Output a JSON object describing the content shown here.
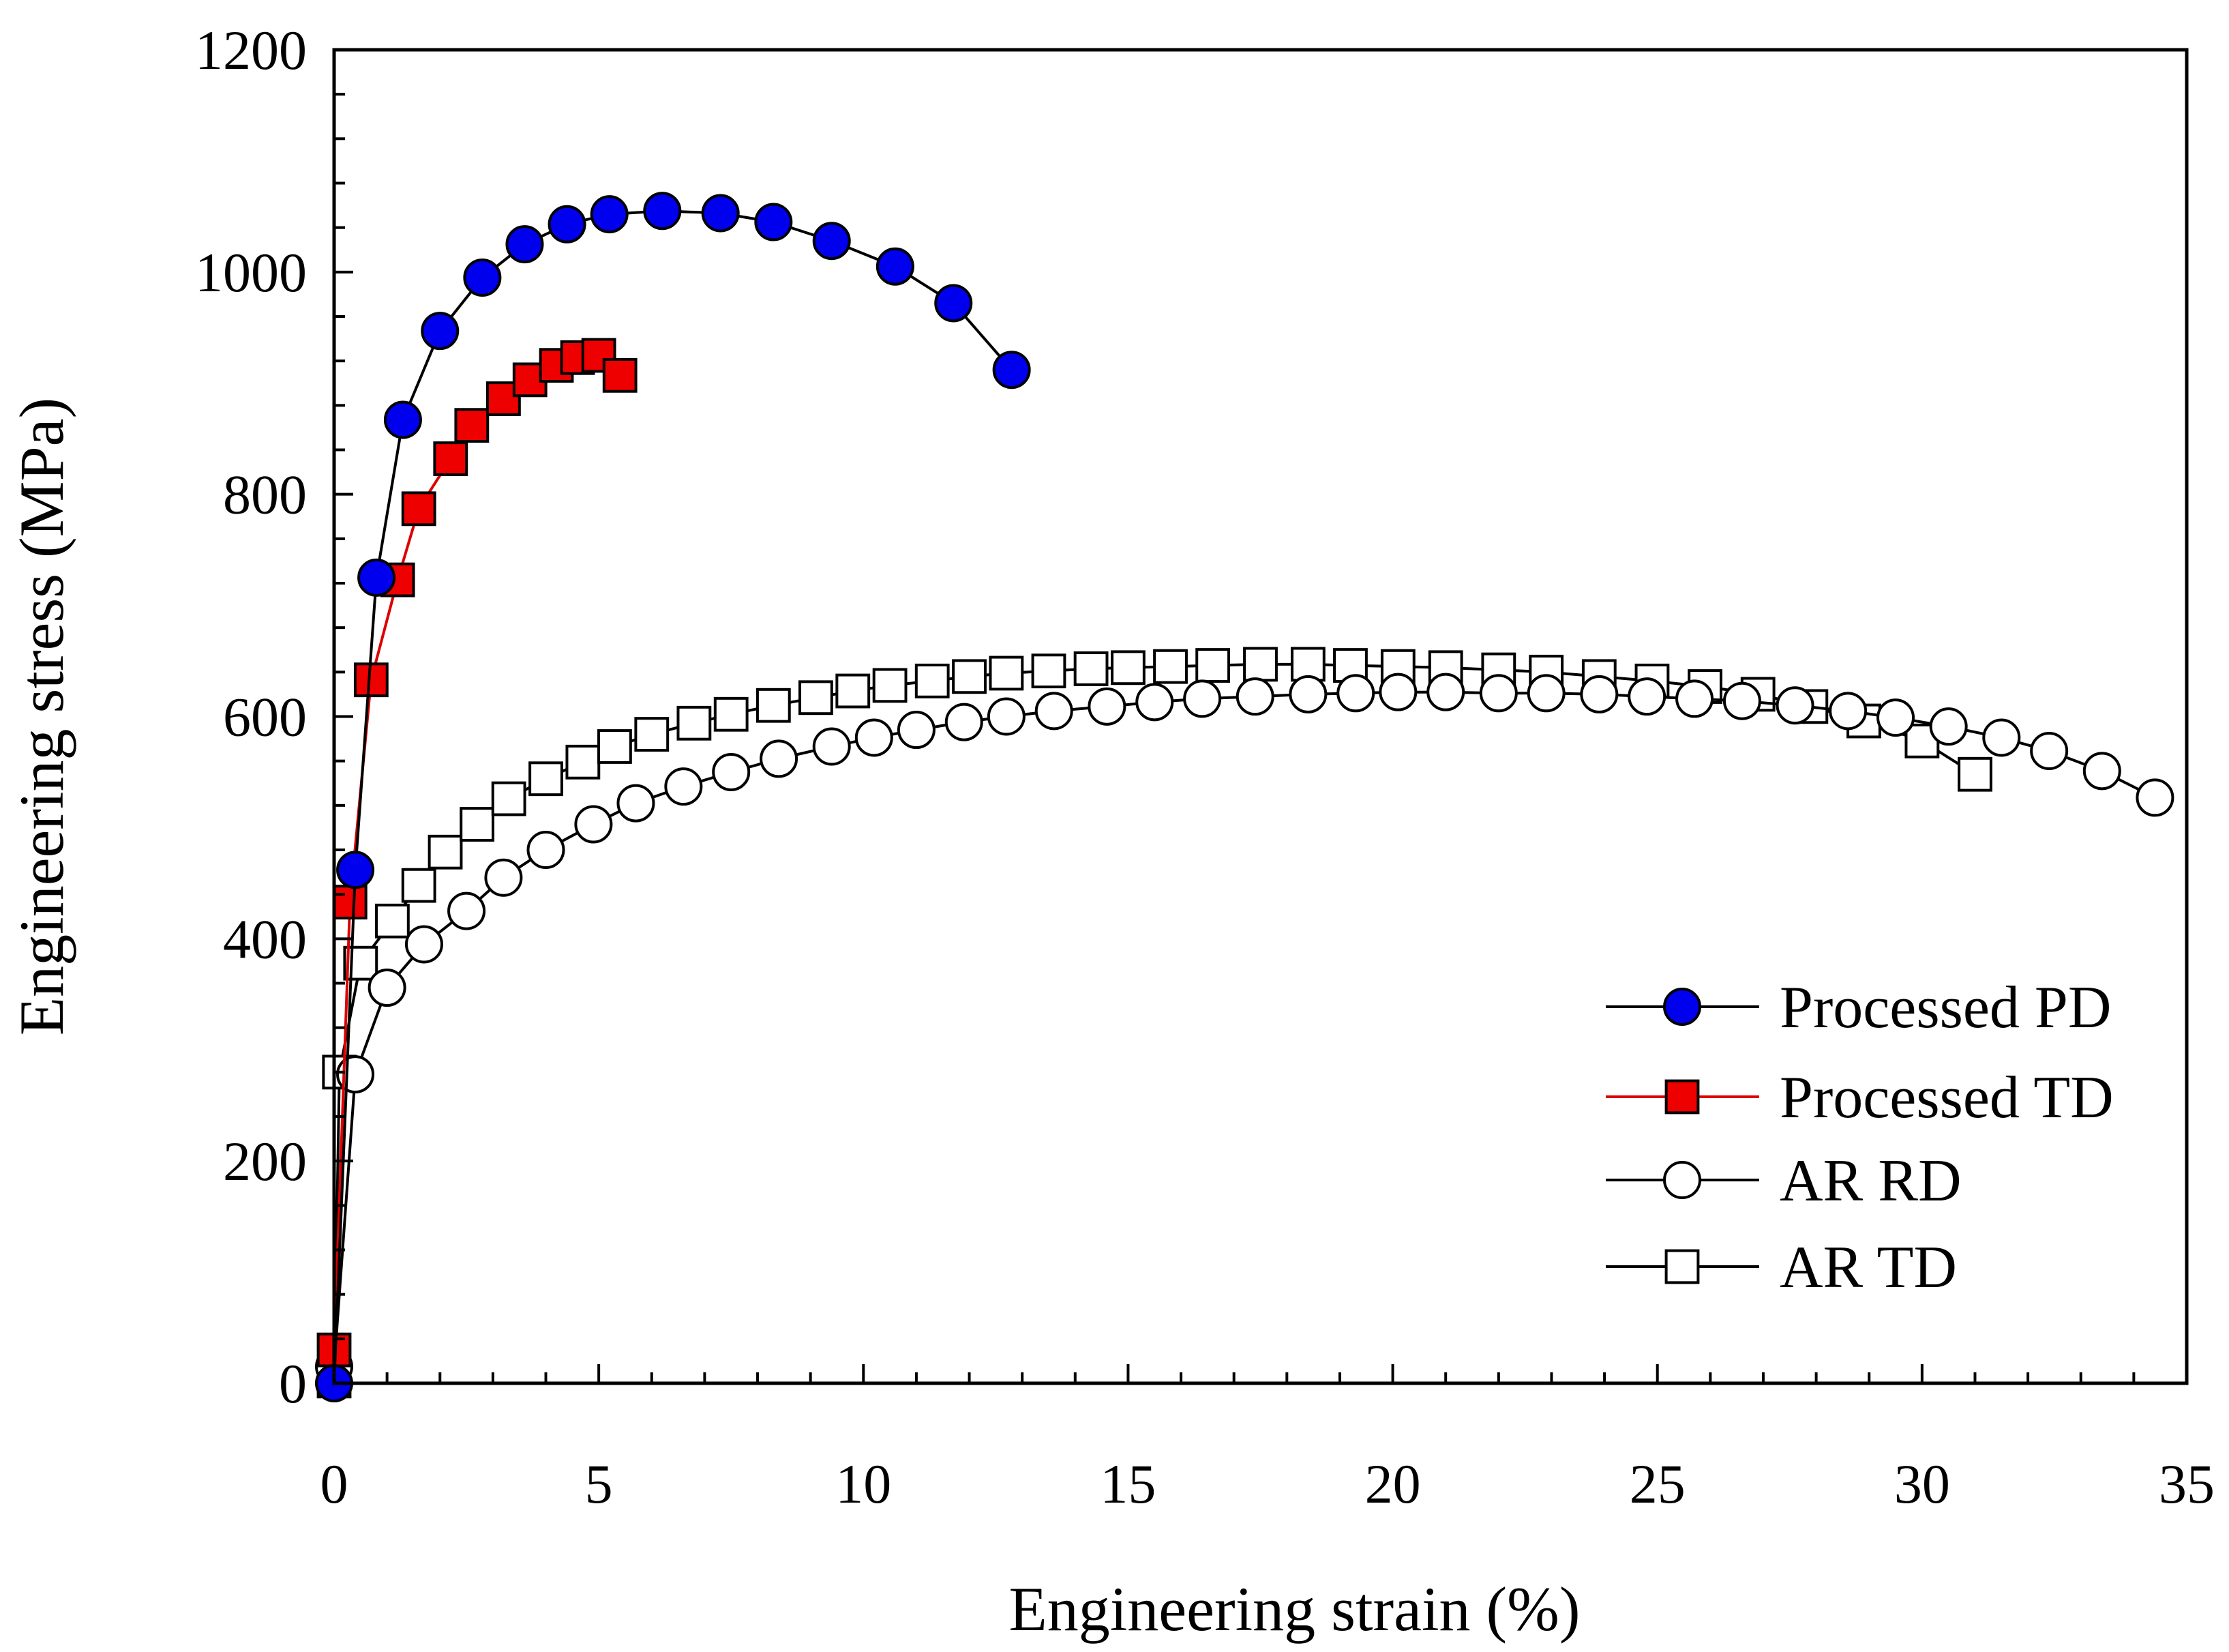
{
  "chart_data": {
    "type": "line",
    "title": "",
    "xlabel": "Engineering strain (%)",
    "ylabel": "Engineering stress (MPa)",
    "xlim": [
      0,
      35
    ],
    "ylim": [
      0,
      1200
    ],
    "x_ticks": [
      0,
      5,
      10,
      15,
      20,
      25,
      30,
      35
    ],
    "y_ticks": [
      0,
      200,
      400,
      600,
      800,
      1000,
      1200
    ],
    "grid": false,
    "legend_position": "bottom-right",
    "series": [
      {
        "name": "Processed PD",
        "marker": "circle",
        "marker_fill": "#0000ee",
        "line_color": "#000000",
        "x": [
          0,
          0.4,
          0.8,
          1.3,
          2.0,
          2.8,
          3.6,
          4.4,
          5.2,
          6.2,
          7.3,
          8.3,
          9.4,
          10.6,
          11.7,
          12.8
        ],
        "y": [
          0,
          462,
          725,
          867,
          947,
          995,
          1025,
          1043,
          1052,
          1055,
          1053,
          1045,
          1028,
          1005,
          972,
          912
        ]
      },
      {
        "name": "Processed TD",
        "marker": "square",
        "marker_fill": "#ee0000",
        "line_color": "#dd0000",
        "x": [
          0,
          0.3,
          0.7,
          1.2,
          1.6,
          2.2,
          2.6,
          3.2,
          3.7,
          4.2,
          4.6,
          5.0,
          5.4
        ],
        "y": [
          30,
          433,
          633,
          723,
          787,
          832,
          862,
          886,
          903,
          916,
          923,
          925,
          907
        ]
      },
      {
        "name": "AR RD",
        "marker": "circle",
        "marker_fill": "#ffffff",
        "line_color": "#000000",
        "x": [
          0,
          0.4,
          1.0,
          1.7,
          2.5,
          3.2,
          4.0,
          4.9,
          5.7,
          6.6,
          7.5,
          8.4,
          9.4,
          10.2,
          11.0,
          11.9,
          12.7,
          13.6,
          14.6,
          15.5,
          16.4,
          17.4,
          18.4,
          19.3,
          20.1,
          21.0,
          22.0,
          22.9,
          23.9,
          24.8,
          25.7,
          26.6,
          27.6,
          28.6,
          29.5,
          30.5,
          31.5,
          32.4,
          33.4,
          34.4
        ],
        "y": [
          15,
          278,
          356,
          395,
          425,
          455,
          480,
          503,
          522,
          537,
          550,
          562,
          573,
          581,
          588,
          595,
          600,
          605,
          609,
          613,
          616,
          618,
          620,
          621,
          622,
          622,
          621,
          621,
          620,
          618,
          616,
          614,
          610,
          605,
          599,
          591,
          581,
          569,
          551,
          527
        ]
      },
      {
        "name": "AR TD",
        "marker": "square",
        "marker_fill": "#ffffff",
        "line_color": "#000000",
        "x": [
          0,
          0.1,
          0.5,
          1.1,
          1.6,
          2.1,
          2.7,
          3.3,
          4.0,
          4.7,
          5.3,
          6.0,
          6.8,
          7.5,
          8.3,
          9.1,
          9.8,
          10.5,
          11.3,
          12.0,
          12.7,
          13.5,
          14.3,
          15.0,
          15.8,
          16.6,
          17.5,
          18.4,
          19.2,
          20.1,
          21.0,
          22.0,
          22.9,
          23.9,
          24.9,
          25.9,
          26.9,
          27.9,
          28.9,
          30.0,
          31.0
        ],
        "y": [
          2,
          280,
          378,
          416,
          448,
          478,
          503,
          526,
          544,
          559,
          573,
          584,
          594,
          602,
          610,
          617,
          623,
          628,
          632,
          636,
          639,
          641,
          643,
          644,
          645,
          646,
          647,
          647,
          646,
          645,
          644,
          642,
          640,
          636,
          632,
          627,
          620,
          609,
          596,
          578,
          548
        ]
      }
    ]
  }
}
